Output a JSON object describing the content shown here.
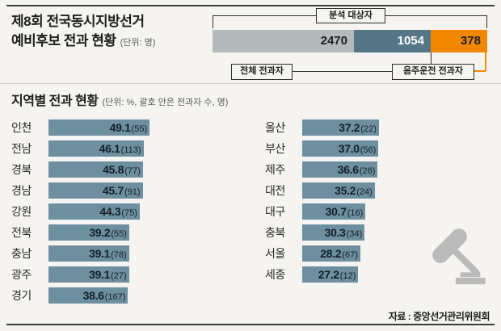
{
  "source": "자료 : 중앙선거관리위원회",
  "colors": {
    "background": "#f5f4f1",
    "bar_blue": "#6e8fa0",
    "segment_gray": "#b4b9bb",
    "segment_blue": "#557687",
    "segment_orange": "#f18800",
    "rule_dark": "#3c3c3c"
  },
  "icons": {
    "gavel": "gavel-icon"
  },
  "chart_data": [
    {
      "type": "bar",
      "subtype": "stacked-horizontal",
      "title_line1": "제8회 전국동시지방선거",
      "title_line2": "예비후보 전과 현황",
      "unit": "(단위: 명)",
      "bracket_label": "분석 대상자",
      "segments": [
        {
          "value": 2470,
          "value_label": "2470"
        },
        {
          "value": 1054,
          "value_label": "1054",
          "callout": "전체 전과자"
        },
        {
          "value": 378,
          "value_label": "378",
          "callout": "음주운전 전과자"
        }
      ]
    },
    {
      "type": "bar",
      "orientation": "horizontal",
      "title": "지역별 전과 현황",
      "unit_note": "(단위: %, 괄호 안은 전과자 수, 명)",
      "xlim": [
        0,
        55
      ],
      "left": [
        {
          "region": "인천",
          "pct": 49.1,
          "count": 55,
          "pct_label": "49.1",
          "count_label": "(55)"
        },
        {
          "region": "전남",
          "pct": 46.1,
          "count": 113,
          "pct_label": "46.1",
          "count_label": "(113)"
        },
        {
          "region": "경북",
          "pct": 45.8,
          "count": 77,
          "pct_label": "45.8",
          "count_label": "(77)"
        },
        {
          "region": "경남",
          "pct": 45.7,
          "count": 91,
          "pct_label": "45.7",
          "count_label": "(91)"
        },
        {
          "region": "강원",
          "pct": 44.3,
          "count": 75,
          "pct_label": "44.3",
          "count_label": "(75)"
        },
        {
          "region": "전북",
          "pct": 39.2,
          "count": 55,
          "pct_label": "39.2",
          "count_label": "(55)"
        },
        {
          "region": "충남",
          "pct": 39.1,
          "count": 78,
          "pct_label": "39.1",
          "count_label": "(78)"
        },
        {
          "region": "광주",
          "pct": 39.1,
          "count": 27,
          "pct_label": "39.1",
          "count_label": "(27)"
        },
        {
          "region": "경기",
          "pct": 38.6,
          "count": 167,
          "pct_label": "38.6",
          "count_label": "(167)"
        }
      ],
      "right": [
        {
          "region": "울산",
          "pct": 37.2,
          "count": 22,
          "pct_label": "37.2",
          "count_label": "(22)"
        },
        {
          "region": "부산",
          "pct": 37.0,
          "count": 56,
          "pct_label": "37.0",
          "count_label": "(56)"
        },
        {
          "region": "제주",
          "pct": 36.6,
          "count": 26,
          "pct_label": "36.6",
          "count_label": "(26)"
        },
        {
          "region": "대전",
          "pct": 35.2,
          "count": 24,
          "pct_label": "35.2",
          "count_label": "(24)"
        },
        {
          "region": "대구",
          "pct": 30.7,
          "count": 16,
          "pct_label": "30.7",
          "count_label": "(16)"
        },
        {
          "region": "충북",
          "pct": 30.3,
          "count": 34,
          "pct_label": "30.3",
          "count_label": "(34)"
        },
        {
          "region": "서울",
          "pct": 28.2,
          "count": 67,
          "pct_label": "28.2",
          "count_label": "(67)"
        },
        {
          "region": "세종",
          "pct": 27.2,
          "count": 12,
          "pct_label": "27.2",
          "count_label": "(12)"
        }
      ]
    }
  ]
}
